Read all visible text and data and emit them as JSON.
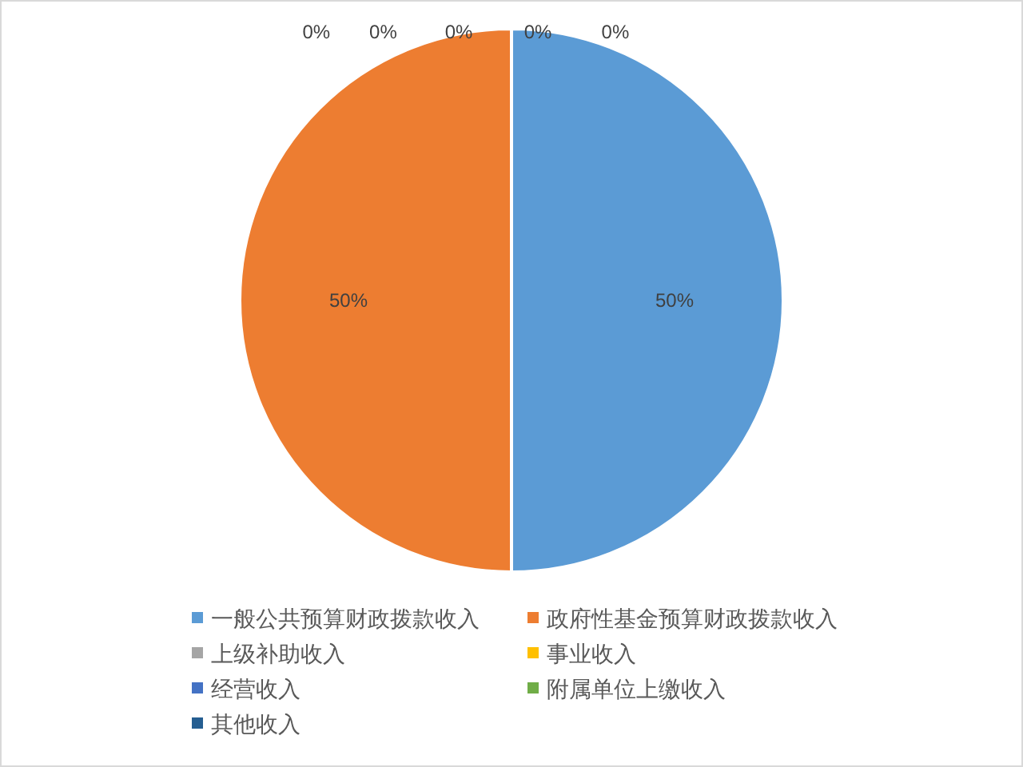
{
  "chart_data": {
    "type": "pie",
    "categories": [
      "一般公共预算财政拨款收入",
      "政府性基金预算财政拨款收入",
      "上级补助收入",
      "事业收入",
      "经营收入",
      "附属单位上缴收入",
      "其他收入"
    ],
    "values": [
      50,
      50,
      0,
      0,
      0,
      0,
      0
    ],
    "colors": [
      "#5b9bd5",
      "#ed7d31",
      "#a5a5a5",
      "#ffc000",
      "#4472c4",
      "#70ad47",
      "#255e91"
    ],
    "value_labels": [
      "50%",
      "50%",
      "0%",
      "0%",
      "0%",
      "0%",
      "0%"
    ],
    "legend": "bottom"
  }
}
